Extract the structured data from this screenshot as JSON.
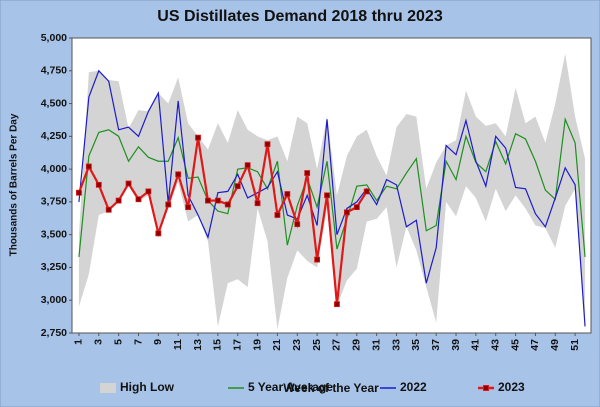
{
  "chart_data": {
    "type": "line",
    "title": "US Distillates Demand 2018 thru 2023",
    "x_label": "Week of the Year",
    "y_label": "Thousands of Barrels Per Day",
    "x": [
      1,
      2,
      3,
      4,
      5,
      6,
      7,
      8,
      9,
      10,
      11,
      12,
      13,
      14,
      15,
      16,
      17,
      18,
      19,
      20,
      21,
      22,
      23,
      24,
      25,
      26,
      27,
      28,
      29,
      30,
      31,
      32,
      33,
      34,
      35,
      36,
      37,
      38,
      39,
      40,
      41,
      42,
      43,
      44,
      45,
      46,
      47,
      48,
      49,
      50,
      51,
      52
    ],
    "xlim": [
      0.3,
      52.6
    ],
    "xticks": [
      1,
      3,
      5,
      7,
      9,
      11,
      13,
      15,
      17,
      19,
      21,
      23,
      25,
      27,
      29,
      31,
      33,
      35,
      37,
      39,
      41,
      43,
      45,
      47,
      49,
      51
    ],
    "ylim": [
      2750,
      5000
    ],
    "yticks": [
      {
        "value": 2750,
        "label": "2,750"
      },
      {
        "value": 3000,
        "label": "3,000"
      },
      {
        "value": 3250,
        "label": "3,250"
      },
      {
        "value": 3500,
        "label": "3,500"
      },
      {
        "value": 3750,
        "label": "3,750"
      },
      {
        "value": 4000,
        "label": "4,000"
      },
      {
        "value": 4250,
        "label": "4,250"
      },
      {
        "value": 4500,
        "label": "4,500"
      },
      {
        "value": 4750,
        "label": "4,750"
      },
      {
        "value": 5000,
        "label": "5,000"
      }
    ],
    "grid": false,
    "series": [
      {
        "name": "High Low",
        "type": "band",
        "color": "#d4d4d4",
        "high": [
          3500,
          4740,
          4750,
          4680,
          4670,
          4310,
          4450,
          4440,
          4580,
          4500,
          4700,
          4350,
          4250,
          4150,
          4350,
          4200,
          4450,
          4300,
          4250,
          4220,
          4250,
          4060,
          4400,
          4350,
          4000,
          4400,
          3800,
          4100,
          4250,
          4300,
          4100,
          3950,
          4320,
          4420,
          4400,
          3850,
          4050,
          4180,
          4220,
          4600,
          4400,
          4330,
          4350,
          4250,
          4620,
          4350,
          4400,
          4200,
          4500,
          4880,
          4400,
          4080
        ],
        "low": [
          2950,
          3200,
          3650,
          3680,
          3760,
          3870,
          3750,
          3800,
          3500,
          3700,
          3900,
          3600,
          3650,
          3450,
          2800,
          3130,
          3160,
          3100,
          3700,
          3450,
          2780,
          3170,
          3380,
          3300,
          3250,
          3700,
          2960,
          3150,
          3240,
          3600,
          3620,
          3710,
          3250,
          3560,
          3380,
          3100,
          2830,
          3750,
          3640,
          3870,
          3780,
          3600,
          3850,
          3680,
          3800,
          3700,
          3570,
          3550,
          3400,
          3720,
          3850,
          2800
        ]
      },
      {
        "name": "5 Year Average",
        "color": "#1f8f1f",
        "values": [
          3330,
          4100,
          4280,
          4300,
          4250,
          4060,
          4170,
          4090,
          4060,
          4060,
          4240,
          3930,
          3940,
          3760,
          3680,
          3660,
          4000,
          4010,
          3980,
          3850,
          4060,
          3420,
          3720,
          3930,
          3710,
          4060,
          3390,
          3620,
          3870,
          3880,
          3760,
          3870,
          3850,
          3970,
          4080,
          3530,
          3570,
          4060,
          3920,
          4250,
          4050,
          3980,
          4210,
          4040,
          4270,
          4230,
          4060,
          3840,
          3770,
          4380,
          4200,
          3330
        ]
      },
      {
        "name": "2022",
        "color": "#1c1ccc",
        "values": [
          3750,
          4550,
          4750,
          4670,
          4300,
          4320,
          4250,
          4440,
          4580,
          3740,
          4520,
          3800,
          3650,
          3480,
          3820,
          3830,
          3960,
          3780,
          3820,
          3860,
          3980,
          3650,
          3620,
          3800,
          3570,
          4380,
          3500,
          3700,
          3750,
          3850,
          3730,
          3920,
          3880,
          3560,
          3610,
          3130,
          3400,
          4180,
          4110,
          4370,
          4060,
          3870,
          4250,
          4160,
          3860,
          3850,
          3660,
          3560,
          3780,
          4010,
          3880,
          2800
        ]
      },
      {
        "name": "2023",
        "color": "#e01818",
        "marker_color": "#8b0000",
        "values": [
          3820,
          4020,
          3880,
          3690,
          3760,
          3890,
          3770,
          3830,
          3510,
          3730,
          3960,
          3710,
          4240,
          3760,
          3760,
          3730,
          3870,
          4030,
          3740,
          4190,
          3650,
          3810,
          3580,
          3970,
          3310,
          3800,
          2970,
          3670,
          3710,
          3830,
          null,
          null,
          null,
          null,
          null,
          null,
          null,
          null,
          null,
          null,
          null,
          null,
          null,
          null,
          null,
          null,
          null,
          null,
          null,
          null,
          null,
          null
        ]
      }
    ]
  }
}
